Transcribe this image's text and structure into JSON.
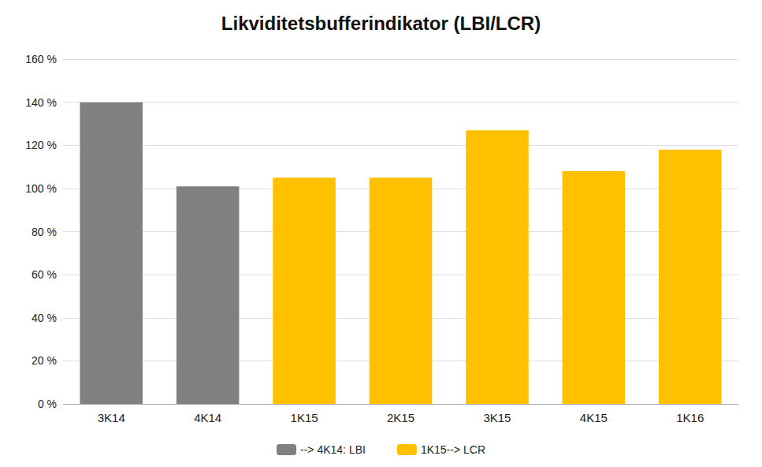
{
  "chart_data": {
    "type": "bar",
    "title": "Likviditetsbufferindikator (LBI/LCR)",
    "categories": [
      "3K14",
      "4K14",
      "1K15",
      "2K15",
      "3K15",
      "4K15",
      "1K16"
    ],
    "series": [
      {
        "name": "--> 4K14: LBI",
        "color": "#808080",
        "values": [
          140,
          101,
          null,
          null,
          null,
          null,
          null
        ]
      },
      {
        "name": "1K15--> LCR",
        "color": "#FFC000",
        "values": [
          null,
          null,
          105,
          105,
          127,
          108,
          118
        ]
      }
    ],
    "ylim": [
      0,
      160
    ],
    "yticks": [
      {
        "value": 0,
        "label": "0 %"
      },
      {
        "value": 20,
        "label": "20 %"
      },
      {
        "value": 40,
        "label": "40 %"
      },
      {
        "value": 60,
        "label": "60 %"
      },
      {
        "value": 80,
        "label": "80 %"
      },
      {
        "value": 100,
        "label": "100 %"
      },
      {
        "value": 120,
        "label": "120 %"
      },
      {
        "value": 140,
        "label": "140 %"
      },
      {
        "value": 160,
        "label": "160 %"
      }
    ],
    "grid": true,
    "legend": "bottom"
  }
}
